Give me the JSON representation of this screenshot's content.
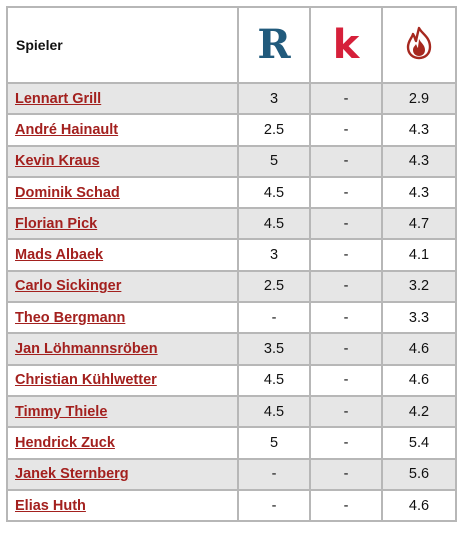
{
  "header": {
    "player_label": "Spieler",
    "logos": [
      {
        "name": "r-logo-icon",
        "glyph": "R",
        "color": "#215a7c"
      },
      {
        "name": "k-logo-icon",
        "glyph": "k",
        "color": "#d6203a"
      },
      {
        "name": "flame-logo-icon",
        "color": "#a6281f"
      }
    ]
  },
  "rows": [
    {
      "name": "Lennart Grill",
      "r": "3",
      "k": "-",
      "f": "2.9"
    },
    {
      "name": "André Hainault",
      "r": "2.5",
      "k": "-",
      "f": "4.3"
    },
    {
      "name": "Kevin Kraus",
      "r": "5",
      "k": "-",
      "f": "4.3"
    },
    {
      "name": "Dominik Schad",
      "r": "4.5",
      "k": "-",
      "f": "4.3"
    },
    {
      "name": "Florian Pick",
      "r": "4.5",
      "k": "-",
      "f": "4.7"
    },
    {
      "name": "Mads Albaek",
      "r": "3",
      "k": "-",
      "f": "4.1"
    },
    {
      "name": "Carlo Sickinger",
      "r": "2.5",
      "k": "-",
      "f": "3.2"
    },
    {
      "name": "Theo Bergmann",
      "r": "-",
      "k": "-",
      "f": "3.3"
    },
    {
      "name": "Jan Löhmannsröben",
      "r": "3.5",
      "k": "-",
      "f": "4.6"
    },
    {
      "name": "Christian Kühlwetter",
      "r": "4.5",
      "k": "-",
      "f": "4.6"
    },
    {
      "name": "Timmy Thiele",
      "r": "4.5",
      "k": "-",
      "f": "4.2"
    },
    {
      "name": "Hendrick Zuck",
      "r": "5",
      "k": "-",
      "f": "5.4"
    },
    {
      "name": "Janek Sternberg",
      "r": "-",
      "k": "-",
      "f": "5.6"
    },
    {
      "name": "Elias Huth",
      "r": "-",
      "k": "-",
      "f": "4.6"
    }
  ],
  "colors": {
    "link": "#a3201e",
    "row_shade": "#e6e6e6",
    "border": "#b7b7b7"
  }
}
